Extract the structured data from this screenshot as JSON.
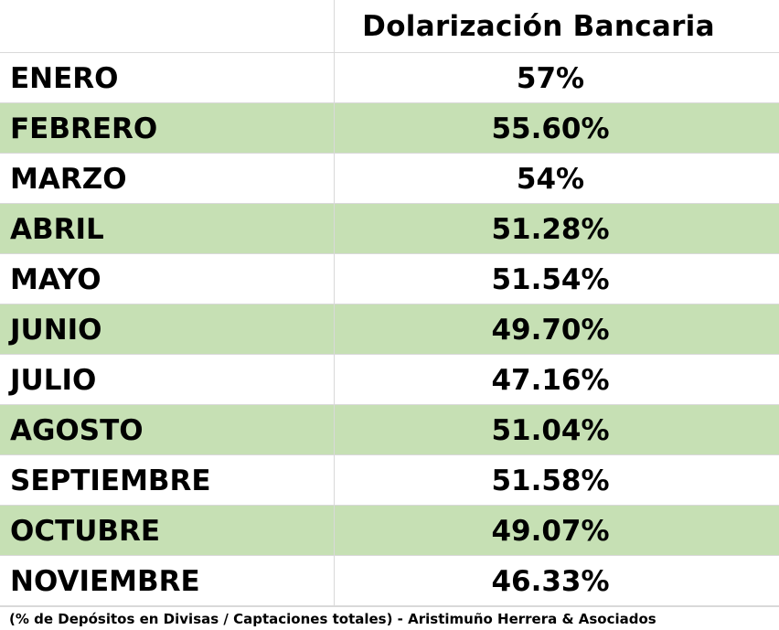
{
  "chart_data": {
    "type": "table",
    "columns": [
      "",
      "Dolarización Bancaria"
    ],
    "header": {
      "month": "",
      "value": "Dolarización Bancaria"
    },
    "rows": [
      {
        "month": "ENERO",
        "value": "57%"
      },
      {
        "month": "FEBRERO",
        "value": "55.60%"
      },
      {
        "month": "MARZO",
        "value": "54%"
      },
      {
        "month": "ABRIL",
        "value": "51.28%"
      },
      {
        "month": "MAYO",
        "value": "51.54%"
      },
      {
        "month": "JUNIO",
        "value": "49.70%"
      },
      {
        "month": "JULIO",
        "value": "47.16%"
      },
      {
        "month": "AGOSTO",
        "value": "51.04%"
      },
      {
        "month": "SEPTIEMBRE",
        "value": "51.58%"
      },
      {
        "month": "OCTUBRE",
        "value": "49.07%"
      },
      {
        "month": "NOVIEMBRE",
        "value": "46.33%"
      }
    ],
    "footnote": "(% de Depósitos en Divisas / Captaciones totales) - Aristimuño Herrera & Asociados"
  },
  "colors": {
    "shaded_row": "#c6e0b4",
    "background": "#ffffff",
    "gridline": "#d9d9d9",
    "text": "#000000"
  }
}
